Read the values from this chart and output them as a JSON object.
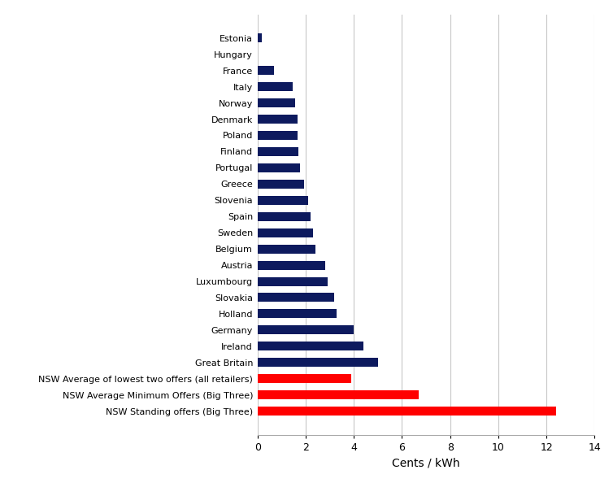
{
  "categories": [
    "NSW Standing offers (Big Three)",
    "NSW Average Minimum Offers (Big Three)",
    "NSW Average of lowest two offers (all retailers)",
    "Great Britain",
    "Ireland",
    "Germany",
    "Holland",
    "Slovakia",
    "Luxumbourg",
    "Austria",
    "Belgium",
    "Sweden",
    "Spain",
    "Slovenia",
    "Greece",
    "Portugal",
    "Finland",
    "Poland",
    "Denmark",
    "Norway",
    "Italy",
    "France",
    "Hungary",
    "Estonia"
  ],
  "values": [
    12.4,
    6.7,
    3.9,
    5.0,
    4.4,
    4.0,
    3.3,
    3.2,
    2.9,
    2.8,
    2.4,
    2.3,
    2.2,
    2.1,
    1.95,
    1.75,
    1.7,
    1.65,
    1.65,
    1.55,
    1.45,
    0.7,
    0.0,
    0.18
  ],
  "colors": [
    "#ff0000",
    "#ff0000",
    "#ff0000",
    "#0d1a5e",
    "#0d1a5e",
    "#0d1a5e",
    "#0d1a5e",
    "#0d1a5e",
    "#0d1a5e",
    "#0d1a5e",
    "#0d1a5e",
    "#0d1a5e",
    "#0d1a5e",
    "#0d1a5e",
    "#0d1a5e",
    "#0d1a5e",
    "#0d1a5e",
    "#0d1a5e",
    "#0d1a5e",
    "#0d1a5e",
    "#0d1a5e",
    "#0d1a5e",
    "#0d1a5e",
    "#0d1a5e"
  ],
  "xlabel": "Cents / kWh",
  "xlim": [
    0,
    14
  ],
  "xticks": [
    0,
    2,
    4,
    6,
    8,
    10,
    12,
    14
  ],
  "background_color": "#ffffff",
  "grid_color": "#c8c8c8",
  "bar_height": 0.55,
  "figure_width": 7.54,
  "figure_height": 5.94,
  "dpi": 100,
  "label_fontsize": 8.0,
  "xlabel_fontsize": 10,
  "xtick_fontsize": 9
}
